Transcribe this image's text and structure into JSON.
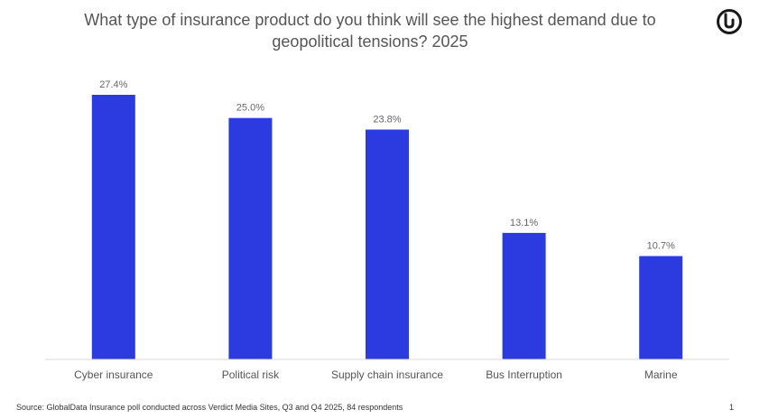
{
  "header": {
    "title_line1": "What type of insurance product do you think will see the highest demand due to",
    "title_line2": "geopolitical tensions? 2025"
  },
  "logo": {
    "icon": "globaldata-logo-icon"
  },
  "colors": {
    "bar": "#2B3BE0",
    "axis": "#D9D9D9",
    "text": "#555555"
  },
  "chart_data": {
    "type": "bar",
    "title": "What type of insurance product do you think will see the highest demand due to geopolitical tensions? 2025",
    "categories": [
      "Cyber insurance",
      "Political risk",
      "Supply chain insurance",
      "Bus Interruption",
      "Marine"
    ],
    "values": [
      27.4,
      25.0,
      23.8,
      13.1,
      10.7
    ],
    "value_labels": [
      "27.4%",
      "25.0%",
      "23.8%",
      "13.1%",
      "10.7%"
    ],
    "unit": "%",
    "xlabel": "",
    "ylabel": "",
    "ylim": [
      0,
      27.4
    ],
    "grid": false,
    "legend": "none"
  },
  "footer": {
    "source": "Source: GlobalData Insurance poll conducted across Verdict Media Sites, Q3 and Q4 2025, 84 respondents",
    "page_number": "1"
  }
}
